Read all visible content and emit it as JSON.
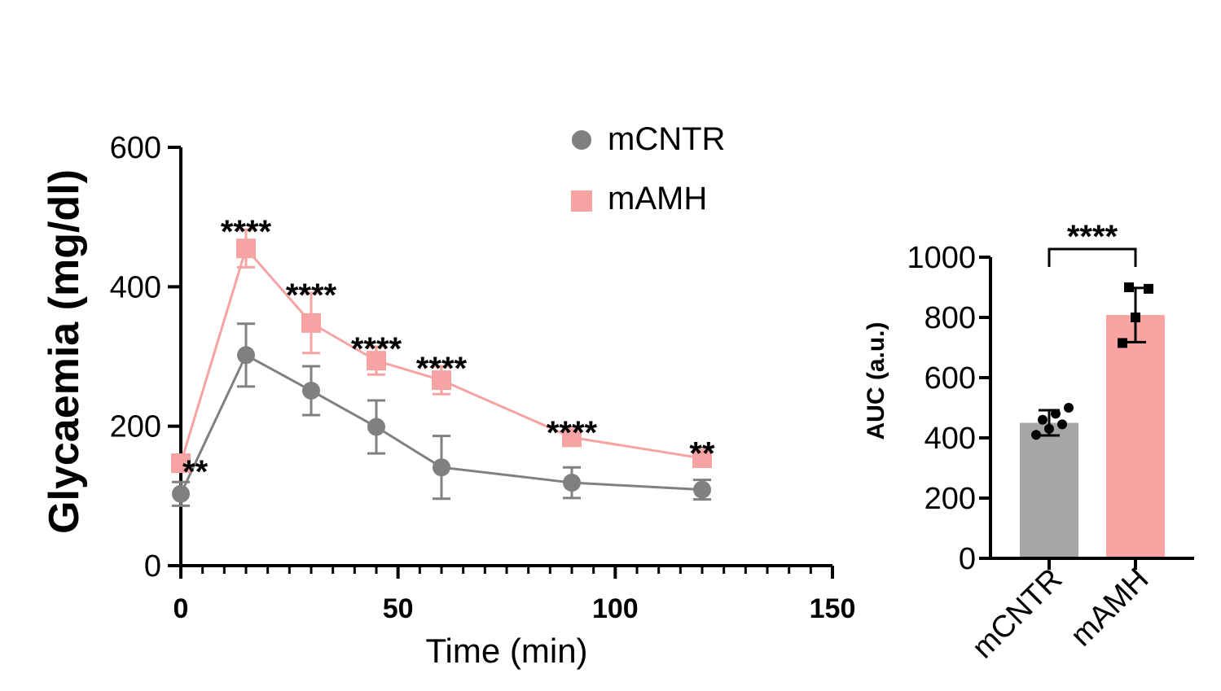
{
  "colors": {
    "control": "#808080",
    "treatment": "#f5a3a3",
    "bar_control": "#a6a6a8",
    "bar_treatment": "#f9a3a3",
    "axis": "#000000"
  },
  "chart_data": [
    {
      "type": "line",
      "xlabel": "Time (min)",
      "ylabel": "Glycaemia (mg/dl)",
      "xlim": [
        0,
        150
      ],
      "ylim": [
        0,
        600
      ],
      "xticks": [
        0,
        50,
        100,
        150
      ],
      "yticks": [
        0,
        200,
        400,
        600
      ],
      "x_tick_labels": [
        "0",
        "50",
        "100",
        "150"
      ],
      "y_tick_labels": [
        "0",
        "200",
        "400",
        "600"
      ],
      "legend": {
        "placement": "top-center",
        "entries": [
          "mCNTR",
          "mAMH"
        ]
      },
      "x": [
        0,
        15,
        30,
        45,
        60,
        90,
        120
      ],
      "series": [
        {
          "name": "mCNTR",
          "marker": "circle",
          "values": [
            103,
            302,
            251,
            199,
            141,
            119,
            109
          ],
          "errors": [
            17,
            45,
            35,
            38,
            45,
            22,
            14
          ]
        },
        {
          "name": "mAMH",
          "marker": "square",
          "values": [
            147,
            455,
            348,
            294,
            266,
            184,
            154
          ],
          "errors": [
            10,
            27,
            43,
            20,
            20,
            10,
            10
          ]
        }
      ],
      "annotations": [
        {
          "x": 0,
          "text": "**"
        },
        {
          "x": 15,
          "text": "****"
        },
        {
          "x": 30,
          "text": "****"
        },
        {
          "x": 45,
          "text": "****"
        },
        {
          "x": 60,
          "text": "****"
        },
        {
          "x": 90,
          "text": "****"
        },
        {
          "x": 120,
          "text": "**"
        }
      ]
    },
    {
      "type": "bar",
      "ylabel": "AUC (a.u.)",
      "categories": [
        "mCNTR",
        "mAMH"
      ],
      "values": [
        450,
        808
      ],
      "errors": [
        42,
        90
      ],
      "ylim": [
        0,
        1000
      ],
      "yticks": [
        0,
        200,
        400,
        600,
        800,
        1000
      ],
      "y_tick_labels": [
        "0",
        "200",
        "400",
        "600",
        "800",
        "1000"
      ],
      "points": [
        [
          410,
          430,
          445,
          460,
          480,
          500
        ],
        [
          715,
          800,
          895,
          900
        ]
      ],
      "significance": "****"
    }
  ]
}
